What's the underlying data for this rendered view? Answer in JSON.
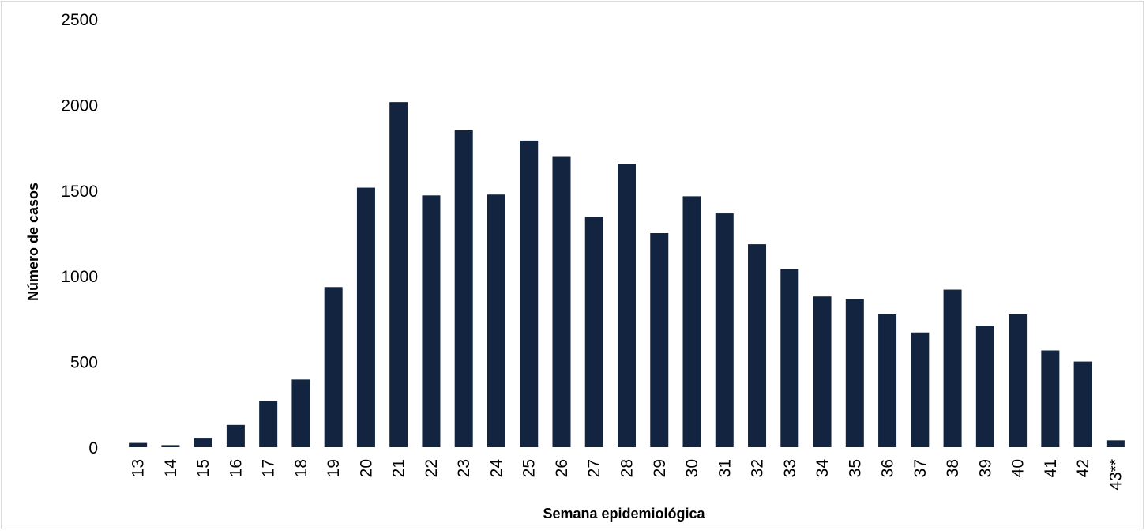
{
  "chart_data": {
    "type": "bar",
    "title": "",
    "xlabel": "Semana epidemiológica",
    "ylabel": "Número de casos",
    "ylim": [
      0,
      2500
    ],
    "yticks": [
      0,
      500,
      1000,
      1500,
      2000,
      2500
    ],
    "grid": false,
    "legend": "none",
    "bar_color": "#12243f",
    "categories": [
      "13",
      "14",
      "15",
      "16",
      "17",
      "18",
      "19",
      "20",
      "21",
      "22",
      "23",
      "24",
      "25",
      "26",
      "27",
      "28",
      "29",
      "30",
      "31",
      "32",
      "33",
      "34",
      "35",
      "36",
      "37",
      "38",
      "39",
      "40",
      "41",
      "42",
      "43**"
    ],
    "values": [
      25,
      12,
      55,
      130,
      270,
      395,
      935,
      1515,
      2015,
      1470,
      1850,
      1475,
      1790,
      1695,
      1345,
      1655,
      1250,
      1465,
      1365,
      1185,
      1040,
      880,
      865,
      775,
      670,
      920,
      710,
      775,
      565,
      500,
      40
    ]
  }
}
